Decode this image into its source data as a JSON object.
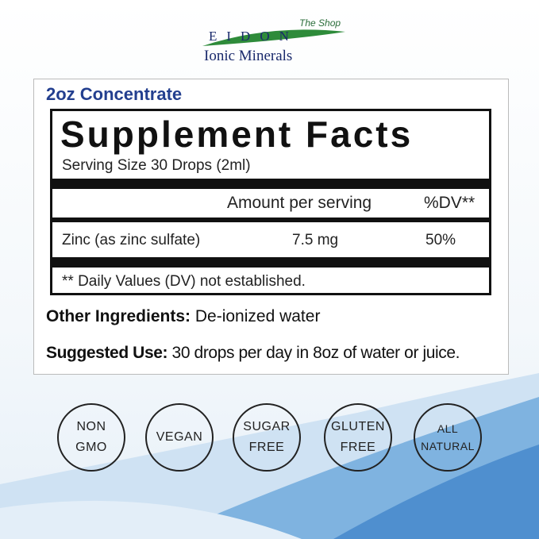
{
  "logo": {
    "letters": "EIDON",
    "registered": "®",
    "tagline": "The Shop",
    "subtitle": "Ionic Minerals"
  },
  "label": {
    "concentrate": "2oz Concentrate",
    "title": "Supplement Facts",
    "serving_size": "Serving Size 30 Drops (2ml)",
    "header_amount": "Amount per serving",
    "header_dv": "%DV**",
    "nutrient": {
      "name": "Zinc (as zinc sulfate)",
      "amount": "7.5 mg",
      "dv": "50%"
    },
    "footnote": "** Daily Values (DV) not established.",
    "other_label": "Other Ingredients:",
    "other_value": " De-ionized water",
    "use_label": "Suggested Use:",
    "use_value": " 30 drops per day in 8oz of water or juice."
  },
  "badges": [
    {
      "l1": "NON",
      "l2": "GMO"
    },
    {
      "l1": "VEGAN",
      "l2": ""
    },
    {
      "l1": "SUGAR",
      "l2": "FREE"
    },
    {
      "l1": "GLUTEN",
      "l2": "FREE"
    },
    {
      "l1": "ALL",
      "l2": "NATURAL"
    }
  ],
  "colors": {
    "brand_blue": "#233f8f",
    "wave_blue": "#4f8fcf",
    "logo_green": "#2e8b3a"
  }
}
